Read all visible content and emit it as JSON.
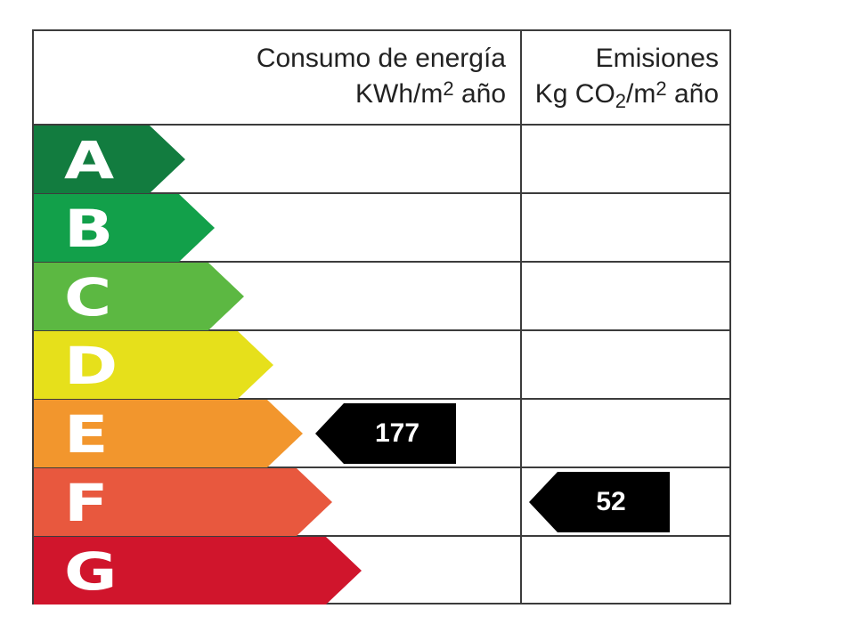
{
  "header": {
    "energy_title": "Consumo de energía",
    "energy_unit_pre": "KWh/m",
    "energy_unit_sup": "2",
    "energy_unit_post": " año",
    "emissions_title": "Emisiones",
    "emissions_unit_pre": "Kg CO",
    "emissions_unit_sub": "2",
    "emissions_unit_mid": "/m",
    "emissions_unit_sup": "2",
    "emissions_unit_post": " año"
  },
  "ratings": [
    {
      "letter": "A",
      "color": "#127c3f"
    },
    {
      "letter": "B",
      "color": "#12a04a"
    },
    {
      "letter": "C",
      "color": "#5cb842"
    },
    {
      "letter": "D",
      "color": "#e6e01b"
    },
    {
      "letter": "E",
      "color": "#f2962d"
    },
    {
      "letter": "F",
      "color": "#e8583e"
    },
    {
      "letter": "G",
      "color": "#d0152c"
    }
  ],
  "energy_marker": {
    "value": "177",
    "rating": "E"
  },
  "emissions_marker": {
    "value": "52",
    "rating": "F"
  }
}
